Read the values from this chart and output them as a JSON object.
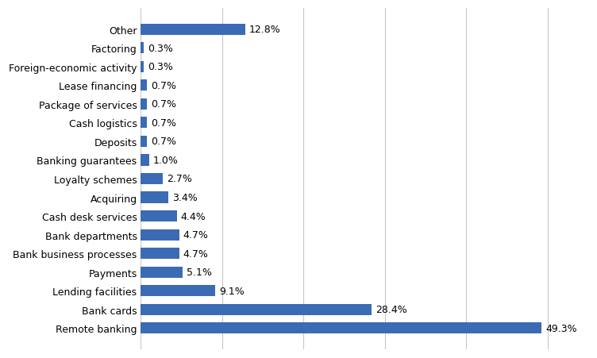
{
  "categories": [
    "Remote banking",
    "Bank cards",
    "Lending facilities",
    "Payments",
    "Bank business processes",
    "Bank departments",
    "Cash desk services",
    "Acquiring",
    "Loyalty schemes",
    "Banking guarantees",
    "Deposits",
    "Cash logistics",
    "Package of services",
    "Lease financing",
    "Foreign-economic activity",
    "Factoring",
    "Other"
  ],
  "values": [
    49.3,
    28.4,
    9.1,
    5.1,
    4.7,
    4.7,
    4.4,
    3.4,
    2.7,
    1.0,
    0.7,
    0.7,
    0.7,
    0.7,
    0.3,
    0.3,
    12.8
  ],
  "bar_color": "#3B6BB5",
  "label_color": "#000000",
  "background_color": "#ffffff",
  "grid_color": "#c8c8c8",
  "xlim": [
    0,
    55
  ],
  "label_fontsize": 9,
  "value_fontsize": 9,
  "xticks": [
    0,
    10,
    20,
    30,
    40,
    50
  ]
}
